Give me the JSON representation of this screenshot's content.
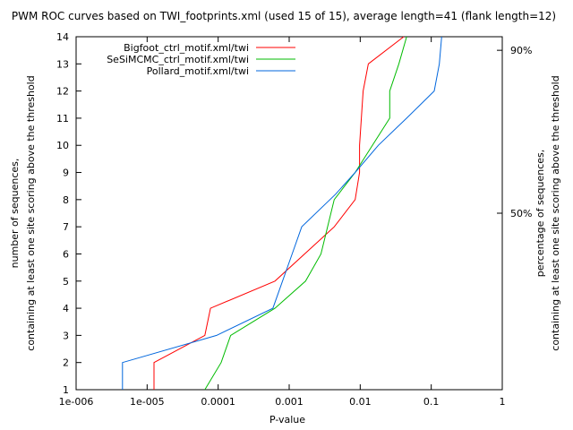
{
  "chart_data": {
    "type": "line",
    "title": "PWM ROC curves based on TWI_footprints.xml (used 15 of 15), average length=41 (flank length=12)",
    "xlabel": "P-value",
    "ylabel_lines": [
      "number of sequences,",
      "containing at least one site scoring above the threshold"
    ],
    "y2label_lines": [
      "percentage of sequences,",
      "containing at least one site scoring above the threshold"
    ],
    "x_scale": "log",
    "xlim": [
      1e-06,
      1
    ],
    "ylim": [
      1,
      14
    ],
    "x_ticks": [
      {
        "value": 1e-06,
        "label": "1e-006"
      },
      {
        "value": 1e-05,
        "label": "1e-005"
      },
      {
        "value": 0.0001,
        "label": "0.0001"
      },
      {
        "value": 0.001,
        "label": "0.001"
      },
      {
        "value": 0.01,
        "label": "0.01"
      },
      {
        "value": 0.1,
        "label": "0.1"
      },
      {
        "value": 1,
        "label": "1"
      }
    ],
    "y_ticks": [
      {
        "value": 1,
        "label": "1"
      },
      {
        "value": 2,
        "label": "2"
      },
      {
        "value": 3,
        "label": "3"
      },
      {
        "value": 4,
        "label": "4"
      },
      {
        "value": 5,
        "label": "5"
      },
      {
        "value": 6,
        "label": "6"
      },
      {
        "value": 7,
        "label": "7"
      },
      {
        "value": 8,
        "label": "8"
      },
      {
        "value": 9,
        "label": "9"
      },
      {
        "value": 10,
        "label": "10"
      },
      {
        "value": 11,
        "label": "11"
      },
      {
        "value": 12,
        "label": "12"
      },
      {
        "value": 13,
        "label": "13"
      },
      {
        "value": 14,
        "label": "14"
      }
    ],
    "y2_ticks": [
      {
        "value": 7.5,
        "label": "50%"
      },
      {
        "value": 13.5,
        "label": "90%"
      }
    ],
    "grid": false,
    "legend_position": "top-left",
    "series": [
      {
        "name": "Bigfoot_ctrl_motif.xml/twi",
        "color": "#ff0000",
        "points": [
          [
            1.25e-05,
            1
          ],
          [
            1.25e-05,
            2
          ],
          [
            6.5e-05,
            3
          ],
          [
            7.8e-05,
            4
          ],
          [
            0.00063,
            5
          ],
          [
            0.0043,
            7
          ],
          [
            0.0085,
            8
          ],
          [
            0.0098,
            9
          ],
          [
            0.0098,
            10
          ],
          [
            0.011,
            12
          ],
          [
            0.013,
            13
          ],
          [
            0.041,
            14
          ]
        ]
      },
      {
        "name": "SeSiMCMC_ctrl_motif.xml/twi",
        "color": "#00bb00",
        "points": [
          [
            6.5e-05,
            1
          ],
          [
            0.00011,
            2
          ],
          [
            0.00015,
            3
          ],
          [
            0.00063,
            4
          ],
          [
            0.0017,
            5
          ],
          [
            0.0028,
            6
          ],
          [
            0.0043,
            8
          ],
          [
            0.0085,
            9
          ],
          [
            0.026,
            11
          ],
          [
            0.026,
            12
          ],
          [
            0.035,
            13
          ],
          [
            0.045,
            14
          ]
        ]
      },
      {
        "name": "Pollard_motif.xml/twi",
        "color": "#0066dd",
        "points": [
          [
            4.5e-06,
            1
          ],
          [
            4.5e-06,
            2
          ],
          [
            9.5e-05,
            3
          ],
          [
            0.00059,
            4
          ],
          [
            0.0011,
            6
          ],
          [
            0.0015,
            7
          ],
          [
            0.0045,
            8.2
          ],
          [
            0.0085,
            9
          ],
          [
            0.018,
            10
          ],
          [
            0.045,
            11
          ],
          [
            0.11,
            12
          ],
          [
            0.13,
            13
          ],
          [
            0.14,
            14
          ]
        ]
      }
    ]
  }
}
